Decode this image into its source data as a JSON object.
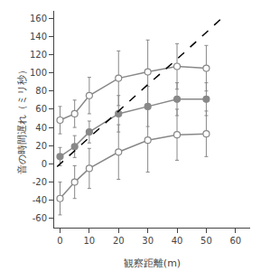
{
  "chart_data": {
    "type": "line",
    "xlabel": "観察距離(m)",
    "ylabel": "音の時間遅れ（ミリ秒）",
    "x": [
      0,
      5,
      10,
      20,
      30,
      40,
      50
    ],
    "xlim": [
      -2,
      65
    ],
    "ylim": [
      -70,
      168
    ],
    "xticks": [
      0,
      10,
      20,
      30,
      40,
      50,
      60
    ],
    "yticks": [
      -60,
      -40,
      -20,
      0,
      20,
      40,
      60,
      80,
      100,
      120,
      140,
      160
    ],
    "grid": false,
    "series": [
      {
        "values": [
          48,
          55,
          75,
          94,
          101,
          107,
          105
        ],
        "error": [
          15,
          15,
          20,
          30,
          35,
          25,
          25
        ],
        "color": "#888888",
        "marker": "open",
        "line_style": "solid"
      },
      {
        "values": [
          -38,
          -20,
          -5,
          13,
          26,
          32,
          33
        ],
        "error": [
          18,
          18,
          22,
          30,
          35,
          28,
          25
        ],
        "color": "#888888",
        "marker": "open",
        "line_style": "solid"
      },
      {
        "values": [
          8,
          19,
          35,
          55,
          63,
          71,
          71
        ],
        "error": [
          10,
          12,
          12,
          20,
          22,
          18,
          18
        ],
        "color": "#888888",
        "marker": "filled",
        "line_style": "solid"
      },
      {
        "x": [
          -1,
          10,
          20,
          30,
          40,
          50,
          56
        ],
        "values": [
          -3,
          29,
          58,
          87,
          115,
          144,
          162
        ],
        "color": "#000000",
        "marker": "none",
        "line_style": "dashed"
      }
    ]
  }
}
